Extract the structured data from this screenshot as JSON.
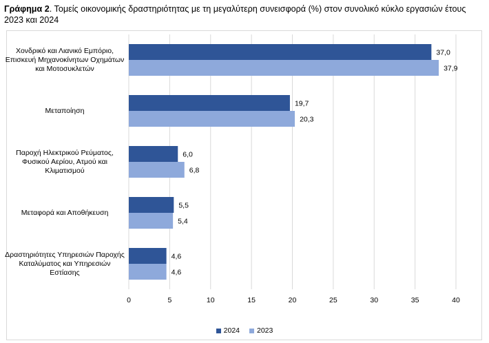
{
  "title": {
    "label": "Γράφημα 2",
    "text": ". Τομείς οικονομικής δραστηριότητας με τη μεγαλύτερη συνεισφορά (%) στον συνολικό κύκλο εργασιών έτους 2023 και 2024"
  },
  "chart_data": {
    "type": "bar",
    "orientation": "horizontal",
    "categories": [
      "Χονδρικό και Λιανικό Εμπόριο, Επισκευή Μηχανοκίνητων Οχημάτων και Μοτοσυκλετών",
      "Μεταποίηση",
      "Παροχή Ηλεκτρικού Ρεύματος, Φυσικού Αερίου, Ατμού και Κλιματισμού",
      "Μεταφορά και Αποθήκευση",
      "Δραστηριότητες Υπηρεσιών Παροχής Καταλύματος και Υπηρεσιών Εστίασης"
    ],
    "series": [
      {
        "name": "2024",
        "color": "#2f5597",
        "values": [
          37.0,
          19.7,
          6.0,
          5.5,
          4.6
        ],
        "labels": [
          "37,0",
          "19,7",
          "6,0",
          "5,5",
          "4,6"
        ]
      },
      {
        "name": "2023",
        "color": "#8ea9db",
        "values": [
          37.9,
          20.3,
          6.8,
          5.4,
          4.6
        ],
        "labels": [
          "37,9",
          "20,3",
          "6,8",
          "5,4",
          "4,6"
        ]
      }
    ],
    "xlim": [
      0,
      40
    ],
    "xticks": [
      0,
      5,
      10,
      15,
      20,
      25,
      30,
      35,
      40
    ],
    "grid": true,
    "legend_position": "bottom"
  }
}
